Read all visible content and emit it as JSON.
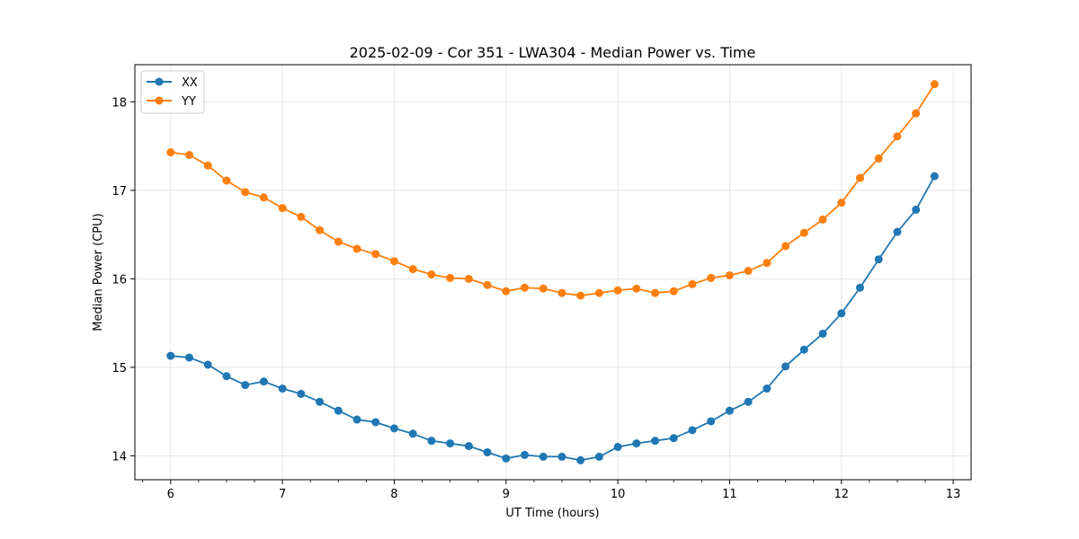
{
  "chart_data": {
    "type": "line",
    "title": "2025-02-09 - Cor 351 - LWA304 - Median Power vs. Time",
    "xlabel": "UT Time (hours)",
    "ylabel": "Median Power (CPU)",
    "xlim": [
      5.68,
      13.16
    ],
    "ylim": [
      13.73,
      18.42
    ],
    "xticks": [
      6,
      7,
      8,
      9,
      10,
      11,
      12,
      13
    ],
    "xtick_labels": [
      "6",
      "7",
      "8",
      "9",
      "10",
      "11",
      "12",
      "13"
    ],
    "yticks": [
      14,
      15,
      16,
      17,
      18
    ],
    "ytick_labels": [
      "14",
      "15",
      "16",
      "17",
      "18"
    ],
    "grid": true,
    "legend_position": "top-left",
    "x": [
      6.0,
      6.1667,
      6.3333,
      6.5,
      6.6667,
      6.8333,
      7.0,
      7.1667,
      7.3333,
      7.5,
      7.6667,
      7.8333,
      8.0,
      8.1667,
      8.3333,
      8.5,
      8.6667,
      8.8333,
      9.0,
      9.1667,
      9.3333,
      9.5,
      9.6667,
      9.8333,
      10.0,
      10.1667,
      10.3333,
      10.5,
      10.6667,
      10.8333,
      11.0,
      11.1667,
      11.3333,
      11.5,
      11.6667,
      11.8333,
      12.0,
      12.1667,
      12.3333,
      12.5,
      12.6667,
      12.8333
    ],
    "series": [
      {
        "name": "XX",
        "color": "#1f77b4",
        "values": [
          15.13,
          15.11,
          15.03,
          14.9,
          14.8,
          14.84,
          14.76,
          14.7,
          14.61,
          14.51,
          14.41,
          14.38,
          14.31,
          14.25,
          14.17,
          14.14,
          14.11,
          14.04,
          13.97,
          14.01,
          13.99,
          13.99,
          13.95,
          13.99,
          14.1,
          14.14,
          14.17,
          14.2,
          14.29,
          14.39,
          14.51,
          14.61,
          14.76,
          15.01,
          15.2,
          15.38,
          15.61,
          15.9,
          16.22,
          16.53,
          16.78,
          17.16
        ]
      },
      {
        "name": "YY",
        "color": "#ff7f0e",
        "values": [
          17.43,
          17.4,
          17.28,
          17.11,
          16.98,
          16.92,
          16.8,
          16.7,
          16.55,
          16.42,
          16.34,
          16.28,
          16.2,
          16.11,
          16.05,
          16.01,
          16.0,
          15.93,
          15.86,
          15.9,
          15.89,
          15.84,
          15.81,
          15.84,
          15.87,
          15.89,
          15.84,
          15.86,
          15.94,
          16.01,
          16.04,
          16.09,
          16.18,
          16.37,
          16.52,
          16.67,
          16.86,
          17.14,
          17.36,
          17.61,
          17.87,
          18.2
        ]
      }
    ]
  }
}
